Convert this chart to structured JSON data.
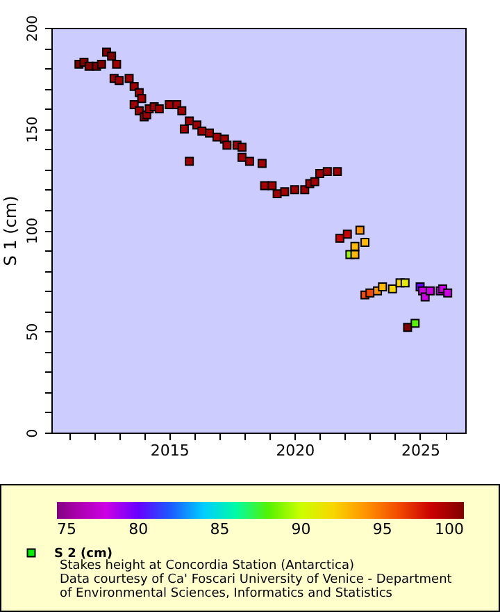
{
  "chart_data": {
    "type": "scatter",
    "ylabel": "S 1 (cm)",
    "marker": "square",
    "legend": "bottom left",
    "clabel": null,
    "xlim": [
      2010.3,
      2026.8
    ],
    "xticks": [
      {
        "value": 2011,
        "label": null
      },
      {
        "value": 2012,
        "label": null
      },
      {
        "value": 2013,
        "label": null
      },
      {
        "value": 2014,
        "label": null
      },
      2015,
      {
        "value": 2016,
        "label": null
      },
      {
        "value": 2017,
        "label": null
      },
      {
        "value": 2018,
        "label": null
      },
      {
        "value": 2019,
        "label": null
      },
      2020,
      {
        "value": 2021,
        "label": null
      },
      {
        "value": 2022,
        "label": null
      },
      {
        "value": 2023,
        "label": null
      },
      {
        "value": 2024,
        "label": null
      },
      2025,
      {
        "value": 2026,
        "label": null
      }
    ],
    "ylim": [
      0,
      200
    ],
    "yticks": [
      0,
      {
        "value": 10,
        "label": null
      },
      {
        "value": 20,
        "label": null
      },
      {
        "value": 30,
        "label": null
      },
      {
        "value": 40,
        "label": null
      },
      50,
      {
        "value": 60,
        "label": null
      },
      {
        "value": 70,
        "label": null
      },
      {
        "value": 80,
        "label": null
      },
      {
        "value": 90,
        "label": null
      },
      100,
      {
        "value": 110,
        "label": null
      },
      {
        "value": 120,
        "label": null
      },
      {
        "value": 130,
        "label": null
      },
      {
        "value": 140,
        "label": null
      },
      150,
      {
        "value": 160,
        "label": null
      },
      {
        "value": 170,
        "label": null
      },
      {
        "value": 180,
        "label": null
      },
      {
        "value": 190,
        "label": null
      },
      200
    ],
    "clim": [
      75,
      100
    ],
    "cticks": [
      75,
      80,
      85,
      90,
      95,
      100
    ],
    "annotations": [
      "Stakes height at Concordia Station (Antarctica)",
      "Data courtesy of Ca' Foscari University of Venice - Department of Environmental Sciences, Informatics and Statistics"
    ],
    "series": [
      {
        "name": "S 2 (cm)",
        "x": [
          2011.4,
          2011.6,
          2011.8,
          2012.1,
          2012.3,
          2012.5,
          2012.7,
          2012.9,
          2012.8,
          2013.0,
          2013.4,
          2013.6,
          2013.8,
          2013.9,
          2013.6,
          2013.8,
          2014.0,
          2014.1,
          2014.2,
          2014.4,
          2014.6,
          2015.0,
          2015.3,
          2015.5,
          2015.6,
          2015.8,
          2015.8,
          2016.1,
          2016.3,
          2016.6,
          2016.9,
          2017.2,
          2017.3,
          2017.7,
          2017.9,
          2017.9,
          2018.2,
          2018.7,
          2018.8,
          2019.1,
          2019.3,
          2019.6,
          2020.0,
          2020.4,
          2020.6,
          2020.8,
          2021.0,
          2021.3,
          2021.7,
          2021.8,
          2022.1,
          2022.6,
          2022.4,
          2022.8,
          2022.2,
          2022.4,
          2022.8,
          2023.0,
          2023.3,
          2023.5,
          2023.9,
          2024.2,
          2024.4,
          2024.5,
          2024.8,
          2025.0,
          2025.1,
          2025.2,
          2025.4,
          2025.8,
          2025.9,
          2026.1
        ],
        "values": [
          182,
          183,
          181,
          181,
          182,
          188,
          186,
          182,
          175,
          174,
          175,
          171,
          168,
          165,
          162,
          159,
          156,
          157,
          160,
          161,
          160,
          162,
          162,
          159,
          150,
          154,
          134,
          152,
          149,
          148,
          146,
          145,
          142,
          142,
          141,
          136,
          134,
          133,
          122,
          122,
          118,
          119,
          120,
          120,
          123,
          124,
          128,
          129,
          129,
          96,
          98,
          100,
          92,
          94,
          88,
          88,
          68,
          69,
          70,
          72,
          71,
          74,
          74,
          52,
          54,
          72,
          70,
          67,
          70,
          70,
          71,
          69
        ],
        "cvalues": [
          100,
          100,
          100,
          100,
          100,
          100,
          100,
          99,
          99,
          99,
          99,
          99,
          99,
          99,
          99,
          99,
          99,
          99,
          99,
          99,
          99,
          99,
          99,
          99,
          99,
          99,
          99,
          99,
          99,
          99,
          99,
          99,
          99,
          99,
          99,
          99,
          99,
          99,
          99,
          99,
          99,
          99,
          99,
          99,
          99,
          99,
          99,
          99,
          99,
          98,
          98,
          94,
          93,
          93,
          89,
          93,
          96,
          96,
          94,
          93,
          92,
          92,
          91,
          100,
          88,
          80,
          78,
          78,
          78,
          78,
          78,
          78
        ]
      }
    ]
  }
}
